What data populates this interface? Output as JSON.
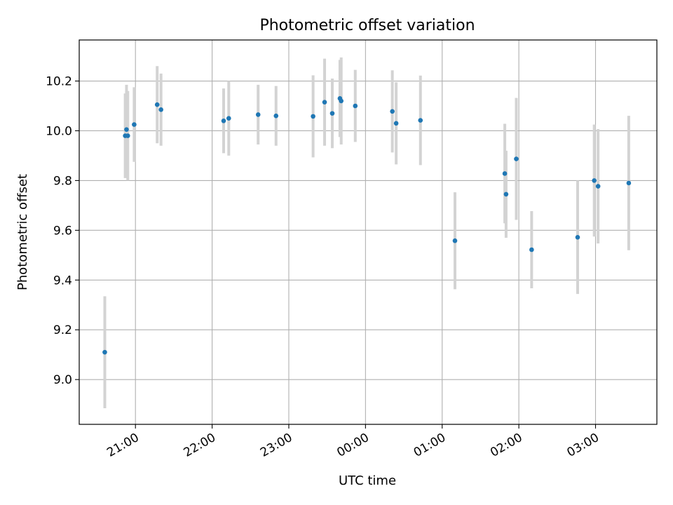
{
  "chart_data": {
    "type": "scatter",
    "title": "Photometric offset variation",
    "xlabel": "UTC time",
    "ylabel": "Photometric offset",
    "grid": true,
    "xlim": [
      "20:16",
      "03:48"
    ],
    "ylim": [
      8.82,
      10.365
    ],
    "x_ticks": [
      "21:00",
      "22:00",
      "23:00",
      "00:00",
      "01:00",
      "02:00",
      "03:00"
    ],
    "y_ticks": [
      "9.0",
      "9.2",
      "9.4",
      "9.6",
      "9.8",
      "10.0",
      "10.2"
    ],
    "colors": {
      "points": "#1f77b4",
      "error_bars": "#d3d3d3"
    },
    "series": [
      {
        "points": [
          {
            "time": "20:36",
            "y": 9.11,
            "err": 0.225
          },
          {
            "time": "20:52",
            "y": 9.98,
            "err": 0.17
          },
          {
            "time": "20:53",
            "y": 10.005,
            "err": 0.18
          },
          {
            "time": "20:54",
            "y": 9.98,
            "err": 0.18
          },
          {
            "time": "20:59",
            "y": 10.025,
            "err": 0.15
          },
          {
            "time": "21:17",
            "y": 10.105,
            "err": 0.155
          },
          {
            "time": "21:20",
            "y": 10.085,
            "err": 0.145
          },
          {
            "time": "22:09",
            "y": 10.04,
            "err": 0.13
          },
          {
            "time": "22:13",
            "y": 10.05,
            "err": 0.15
          },
          {
            "time": "22:36",
            "y": 10.065,
            "err": 0.12
          },
          {
            "time": "22:50",
            "y": 10.06,
            "err": 0.12
          },
          {
            "time": "23:19",
            "y": 10.058,
            "err": 0.165
          },
          {
            "time": "23:28",
            "y": 10.115,
            "err": 0.175
          },
          {
            "time": "23:34",
            "y": 10.07,
            "err": 0.14
          },
          {
            "time": "23:40",
            "y": 10.13,
            "err": 0.155
          },
          {
            "time": "23:41",
            "y": 10.12,
            "err": 0.175
          },
          {
            "time": "23:52",
            "y": 10.1,
            "err": 0.145
          },
          {
            "time": "00:21",
            "y": 10.078,
            "err": 0.165
          },
          {
            "time": "00:24",
            "y": 10.03,
            "err": 0.165
          },
          {
            "time": "00:43",
            "y": 10.042,
            "err": 0.18
          },
          {
            "time": "01:10",
            "y": 9.558,
            "err": 0.195
          },
          {
            "time": "01:49",
            "y": 9.828,
            "err": 0.2
          },
          {
            "time": "01:50",
            "y": 9.745,
            "err": 0.175
          },
          {
            "time": "01:58",
            "y": 9.887,
            "err": 0.245
          },
          {
            "time": "02:10",
            "y": 9.522,
            "err": 0.155
          },
          {
            "time": "02:46",
            "y": 9.572,
            "err": 0.228
          },
          {
            "time": "02:59",
            "y": 9.8,
            "err": 0.225
          },
          {
            "time": "03:02",
            "y": 9.777,
            "err": 0.23
          },
          {
            "time": "03:26",
            "y": 9.79,
            "err": 0.27
          }
        ]
      }
    ]
  }
}
